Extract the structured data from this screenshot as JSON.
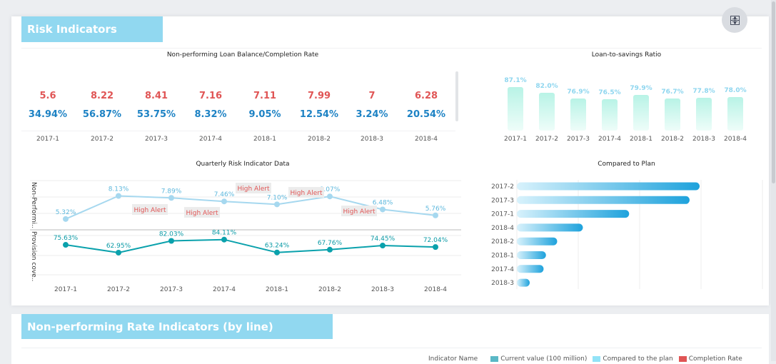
{
  "section1": {
    "title": "Risk Indicators",
    "exit_fullscreen_icon": "compress-icon"
  },
  "npl_table": {
    "title": "Non-performing Loan Balance/Completion Rate",
    "periods": [
      "2017-1",
      "2017-2",
      "2017-3",
      "2017-4",
      "2018-1",
      "2018-2",
      "2018-3",
      "2018-4"
    ],
    "balances": [
      "5.6",
      "8.22",
      "8.41",
      "7.16",
      "7.11",
      "7.99",
      "7",
      "6.28"
    ],
    "rates": [
      "34.94%",
      "56.87%",
      "53.75%",
      "8.32%",
      "9.05%",
      "12.54%",
      "3.24%",
      "20.54%"
    ],
    "colors": {
      "balance": "#e05555",
      "rate": "#1d82c4"
    }
  },
  "chart_data": [
    {
      "type": "bar",
      "title": "Loan-to-savings Ratio",
      "categories": [
        "2017-1",
        "2017-2",
        "2017-3",
        "2017-4",
        "2018-1",
        "2018-2",
        "2018-3",
        "2018-4"
      ],
      "values": [
        87.1,
        82.0,
        76.9,
        76.5,
        79.9,
        76.7,
        77.8,
        78.0
      ],
      "labels": [
        "87.1%",
        "82.0%",
        "76.9%",
        "76.5%",
        "79.9%",
        "76.7%",
        "77.8%",
        "78.0%"
      ],
      "grid": false,
      "color": "#b8f3e6"
    },
    {
      "type": "line",
      "title": "Quarterly Risk Indicator Data",
      "categories": [
        "2017-1",
        "2017-2",
        "2017-3",
        "2017-4",
        "2018-1",
        "2018-2",
        "2018-3",
        "2018-4"
      ],
      "series": [
        {
          "name": "Non-Performi..",
          "values": [
            5.32,
            8.13,
            7.89,
            7.46,
            7.1,
            8.07,
            6.48,
            5.76
          ],
          "labels": [
            "5.32%",
            "8.13%",
            "7.89%",
            "7.46%",
            "7.10%",
            "8.07%",
            "6.48%",
            "5.76%"
          ],
          "color": "#a6d8ef",
          "ylim": [
            4,
            10
          ]
        },
        {
          "name": "Provision cove..",
          "values": [
            75.63,
            62.95,
            82.03,
            84.11,
            63.24,
            67.76,
            74.45,
            72.04
          ],
          "labels": [
            "75.63%",
            "62.95%",
            "82.03%",
            "84.11%",
            "63.24%",
            "67.76%",
            "74.45%",
            "72.04%"
          ],
          "color": "#0aa1ac",
          "ylim": [
            20,
            100
          ]
        }
      ],
      "annotations": [
        "High Alert",
        "High Alert",
        "High Alert",
        "High Alert",
        "High Alert"
      ],
      "grid": true
    },
    {
      "type": "bar",
      "orientation": "horizontal",
      "title": "Compared to Plan",
      "categories": [
        "2017-2",
        "2017-3",
        "2017-1",
        "2018-4",
        "2018-2",
        "2018-1",
        "2017-4",
        "2018-3"
      ],
      "values": [
        56.87,
        53.75,
        34.94,
        20.54,
        12.54,
        9.05,
        8.32,
        3.24
      ],
      "grid": true,
      "color": "#1ea2dc"
    }
  ],
  "section2": {
    "title": "Non-performing Rate Indicators (by line)",
    "legend": {
      "title": "Indicator Name",
      "items": [
        {
          "label": "Current value (100 million)",
          "color": "#5ab8c6"
        },
        {
          "label": "Compared to the plan",
          "color": "#92e3f7"
        },
        {
          "label": "Completion Rate",
          "color": "#e05555"
        }
      ]
    }
  }
}
